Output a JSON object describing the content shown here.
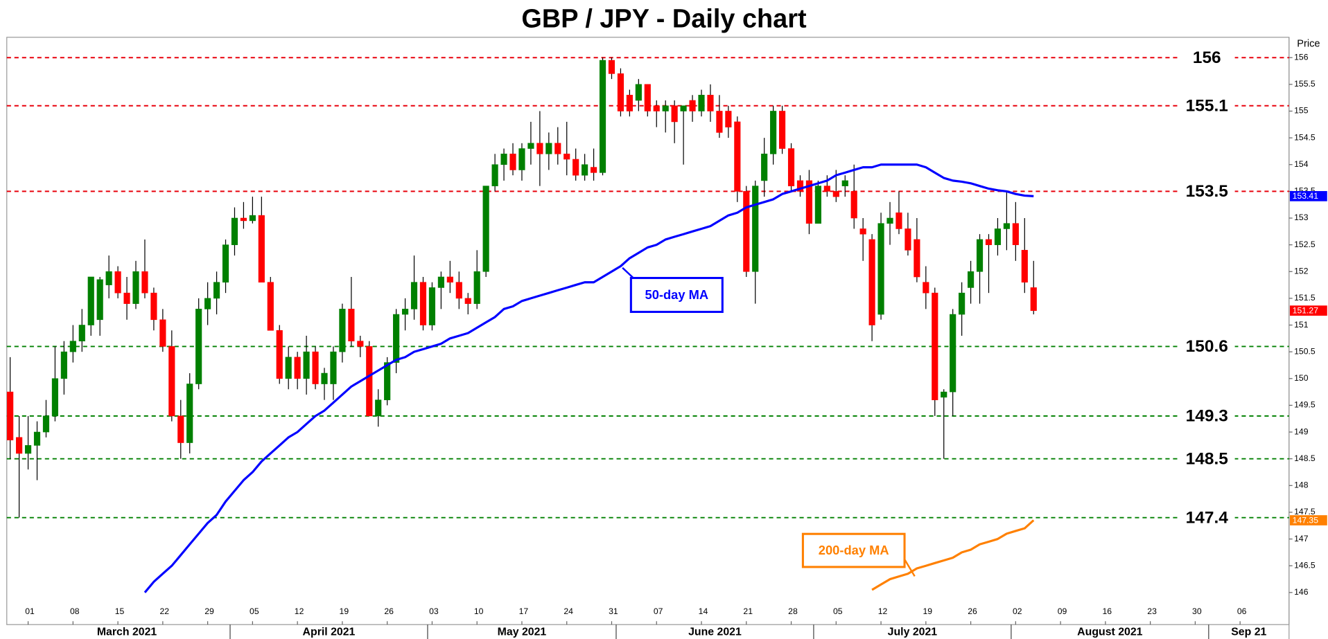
{
  "chart_data": {
    "type": "candlestick",
    "title": "GBP / JPY - Daily chart",
    "y_axis_label": "Price",
    "categories": [
      "2021-02-25",
      "2021-02-26",
      "2021-03-01",
      "2021-03-02",
      "2021-03-03",
      "2021-03-04",
      "2021-03-05",
      "2021-03-08",
      "2021-03-09",
      "2021-03-10",
      "2021-03-11",
      "2021-03-12",
      "2021-03-15",
      "2021-03-16",
      "2021-03-17",
      "2021-03-18",
      "2021-03-19",
      "2021-03-22",
      "2021-03-23",
      "2021-03-24",
      "2021-03-25",
      "2021-03-26",
      "2021-03-29",
      "2021-03-30",
      "2021-03-31",
      "2021-04-01",
      "2021-04-02",
      "2021-04-05",
      "2021-04-06",
      "2021-04-07",
      "2021-04-08",
      "2021-04-09",
      "2021-04-12",
      "2021-04-13",
      "2021-04-14",
      "2021-04-15",
      "2021-04-16",
      "2021-04-19",
      "2021-04-20",
      "2021-04-21",
      "2021-04-22",
      "2021-04-23",
      "2021-04-26",
      "2021-04-27",
      "2021-04-28",
      "2021-04-29",
      "2021-04-30",
      "2021-05-03",
      "2021-05-04",
      "2021-05-05",
      "2021-05-06",
      "2021-05-07",
      "2021-05-10",
      "2021-05-11",
      "2021-05-12",
      "2021-05-13",
      "2021-05-14",
      "2021-05-17",
      "2021-05-18",
      "2021-05-19",
      "2021-05-20",
      "2021-05-21",
      "2021-05-24",
      "2021-05-25",
      "2021-05-26",
      "2021-05-27",
      "2021-05-28",
      "2021-05-31",
      "2021-06-01",
      "2021-06-02",
      "2021-06-03",
      "2021-06-04",
      "2021-06-07",
      "2021-06-08",
      "2021-06-09",
      "2021-06-10",
      "2021-06-11",
      "2021-06-14",
      "2021-06-15",
      "2021-06-16",
      "2021-06-17",
      "2021-06-18",
      "2021-06-21",
      "2021-06-22",
      "2021-06-23",
      "2021-06-24",
      "2021-06-25",
      "2021-06-28",
      "2021-06-29",
      "2021-06-30",
      "2021-07-01",
      "2021-07-02",
      "2021-07-05",
      "2021-07-06",
      "2021-07-07",
      "2021-07-08",
      "2021-07-09",
      "2021-07-12",
      "2021-07-13",
      "2021-07-14",
      "2021-07-15",
      "2021-07-16",
      "2021-07-19",
      "2021-07-20",
      "2021-07-21",
      "2021-07-22",
      "2021-07-23",
      "2021-07-26",
      "2021-07-27",
      "2021-07-28",
      "2021-07-29",
      "2021-07-30",
      "2021-08-02",
      "2021-08-03",
      "2021-08-04"
    ],
    "open": [
      149.75,
      148.9,
      148.6,
      148.75,
      149.0,
      149.3,
      150.0,
      150.5,
      150.7,
      151.0,
      151.1,
      151.75,
      152.0,
      151.6,
      151.4,
      152.0,
      151.6,
      151.1,
      150.6,
      149.3,
      148.8,
      149.9,
      151.3,
      151.5,
      151.8,
      152.5,
      153.0,
      152.95,
      153.05,
      151.8,
      150.9,
      150.0,
      150.4,
      150.0,
      150.5,
      149.9,
      149.9,
      150.5,
      151.3,
      150.7,
      150.6,
      149.3,
      149.6,
      150.3,
      151.2,
      151.3,
      151.8,
      151.0,
      151.7,
      151.9,
      151.8,
      151.5,
      151.4,
      152.0,
      153.6,
      154.0,
      154.2,
      153.9,
      154.3,
      154.4,
      154.2,
      154.4,
      154.2,
      154.1,
      153.8,
      153.95,
      153.85,
      155.95,
      155.7,
      155.3,
      155.2,
      155.5,
      155.1,
      155.0,
      155.1,
      155.0,
      155.2,
      155.0,
      155.3,
      155.0,
      155.0,
      154.8,
      153.5,
      152.0,
      153.7,
      154.2,
      155.0,
      154.3,
      153.7,
      153.7,
      152.9,
      153.6,
      153.5,
      153.6,
      153.5,
      152.8,
      152.6,
      151.2,
      152.9,
      153.1,
      152.8,
      152.6,
      151.8,
      151.6,
      149.65,
      149.75,
      151.2,
      151.7,
      152.0,
      152.6,
      152.5,
      152.8,
      152.9,
      152.4,
      151.7
    ],
    "high": [
      150.4,
      149.3,
      149.3,
      149.2,
      149.6,
      150.6,
      150.7,
      151.0,
      151.3,
      151.9,
      151.9,
      152.3,
      152.1,
      151.9,
      152.2,
      152.6,
      151.7,
      151.3,
      150.9,
      149.6,
      150.1,
      151.5,
      151.8,
      152.0,
      152.6,
      153.2,
      153.3,
      153.4,
      153.4,
      151.9,
      151.0,
      150.6,
      150.5,
      150.8,
      150.6,
      150.2,
      150.6,
      151.4,
      151.9,
      150.8,
      150.7,
      149.8,
      150.4,
      151.3,
      151.5,
      152.3,
      151.9,
      151.8,
      152.0,
      152.2,
      152.0,
      151.6,
      152.4,
      153.6,
      154.2,
      154.3,
      154.4,
      154.4,
      154.8,
      155.0,
      154.6,
      154.7,
      154.8,
      154.3,
      154.2,
      154.3,
      156.0,
      156.0,
      155.8,
      155.4,
      155.6,
      155.5,
      155.2,
      155.2,
      155.2,
      155.1,
      155.3,
      155.4,
      155.5,
      155.3,
      155.1,
      154.9,
      153.6,
      153.7,
      154.5,
      155.1,
      155.1,
      154.4,
      153.8,
      153.9,
      153.7,
      153.8,
      153.9,
      153.8,
      154.0,
      153.0,
      152.7,
      153.1,
      153.3,
      153.5,
      153.1,
      153.0,
      152.1,
      151.7,
      149.8,
      151.3,
      151.8,
      152.2,
      152.7,
      152.7,
      153.0,
      153.5,
      153.3,
      153.0,
      152.2
    ],
    "low": [
      148.5,
      147.4,
      148.3,
      148.1,
      148.9,
      149.2,
      149.7,
      150.3,
      150.5,
      150.8,
      150.8,
      151.5,
      151.5,
      151.1,
      151.3,
      151.5,
      150.9,
      150.5,
      149.2,
      148.5,
      148.6,
      149.8,
      151.0,
      151.2,
      151.6,
      152.3,
      152.8,
      152.9,
      151.8,
      150.9,
      149.9,
      149.8,
      149.8,
      149.7,
      149.8,
      149.6,
      149.6,
      150.3,
      150.6,
      150.4,
      149.3,
      149.1,
      149.5,
      150.1,
      150.9,
      151.1,
      150.9,
      150.9,
      151.3,
      151.6,
      151.3,
      151.2,
      151.3,
      151.9,
      153.5,
      153.7,
      153.8,
      153.7,
      154.0,
      153.6,
      153.9,
      154.0,
      153.8,
      153.7,
      153.7,
      153.7,
      153.8,
      155.6,
      154.9,
      154.9,
      155.0,
      154.9,
      154.7,
      154.6,
      154.4,
      154.0,
      154.8,
      154.9,
      154.8,
      154.5,
      154.5,
      153.3,
      151.9,
      151.4,
      153.4,
      154.0,
      154.2,
      153.5,
      153.4,
      152.7,
      152.9,
      153.4,
      153.3,
      153.4,
      152.8,
      152.2,
      150.7,
      151.1,
      152.5,
      152.7,
      152.3,
      151.8,
      151.3,
      149.3,
      148.5,
      149.3,
      150.8,
      151.4,
      151.4,
      151.6,
      152.3,
      152.4,
      152.2,
      151.6,
      151.2
    ],
    "close": [
      148.85,
      148.6,
      148.75,
      149.0,
      149.3,
      150.0,
      150.5,
      150.7,
      151.0,
      151.9,
      151.85,
      152.0,
      151.6,
      151.4,
      152.0,
      151.6,
      151.1,
      150.6,
      149.3,
      148.8,
      149.9,
      151.3,
      151.5,
      151.8,
      152.5,
      153.0,
      152.95,
      153.05,
      151.8,
      150.9,
      150.0,
      150.4,
      150.0,
      150.5,
      149.9,
      150.1,
      150.5,
      151.3,
      150.7,
      150.6,
      149.3,
      149.6,
      150.3,
      151.2,
      151.3,
      151.8,
      151.0,
      151.7,
      151.9,
      151.8,
      151.5,
      151.4,
      152.0,
      153.6,
      154.0,
      154.2,
      153.9,
      154.3,
      154.4,
      154.2,
      154.4,
      154.2,
      154.1,
      153.8,
      154.0,
      153.85,
      155.95,
      155.7,
      155.0,
      155.0,
      155.5,
      155.0,
      155.0,
      155.1,
      154.8,
      155.1,
      155.0,
      155.3,
      155.0,
      154.6,
      154.7,
      153.5,
      152.0,
      153.6,
      154.2,
      155.0,
      154.3,
      153.6,
      153.5,
      152.9,
      153.6,
      153.5,
      153.4,
      153.7,
      153.0,
      152.7,
      151.0,
      152.9,
      153.0,
      152.8,
      152.4,
      151.9,
      151.6,
      149.6,
      149.75,
      151.2,
      151.6,
      152.0,
      152.6,
      152.5,
      152.8,
      152.9,
      152.5,
      151.8,
      151.27
    ],
    "up_color": "#008000",
    "down_color": "#ff0000",
    "series": [
      {
        "name": "50-day MA",
        "color": "#0000ff",
        "values": [
          null,
          null,
          null,
          null,
          null,
          null,
          null,
          null,
          null,
          null,
          null,
          null,
          null,
          null,
          null,
          146.0,
          146.2,
          146.35,
          146.5,
          146.7,
          146.9,
          147.1,
          147.3,
          147.45,
          147.7,
          147.9,
          148.1,
          148.25,
          148.45,
          148.6,
          148.75,
          148.9,
          149.0,
          149.15,
          149.3,
          149.4,
          149.55,
          149.7,
          149.85,
          149.95,
          150.05,
          150.15,
          150.25,
          150.35,
          150.4,
          150.5,
          150.55,
          150.6,
          150.65,
          150.75,
          150.8,
          150.85,
          150.95,
          151.05,
          151.15,
          151.3,
          151.35,
          151.45,
          151.5,
          151.55,
          151.6,
          151.65,
          151.7,
          151.75,
          151.8,
          151.8,
          151.9,
          152.0,
          152.1,
          152.25,
          152.35,
          152.45,
          152.5,
          152.6,
          152.65,
          152.7,
          152.75,
          152.8,
          152.85,
          152.95,
          153.05,
          153.1,
          153.2,
          153.25,
          153.3,
          153.35,
          153.45,
          153.5,
          153.55,
          153.6,
          153.65,
          153.7,
          153.8,
          153.85,
          153.9,
          153.95,
          153.95,
          154.0,
          154.0,
          154.0,
          154.0,
          154.0,
          153.95,
          153.85,
          153.75,
          153.7,
          153.68,
          153.65,
          153.6,
          153.55,
          153.52,
          153.5,
          153.45,
          153.42,
          153.41
        ]
      },
      {
        "name": "200-day MA",
        "color": "#ff8000",
        "values": [
          null,
          null,
          null,
          null,
          null,
          null,
          null,
          null,
          null,
          null,
          null,
          null,
          null,
          null,
          null,
          null,
          null,
          null,
          null,
          null,
          null,
          null,
          null,
          null,
          null,
          null,
          null,
          null,
          null,
          null,
          null,
          null,
          null,
          null,
          null,
          null,
          null,
          null,
          null,
          null,
          null,
          null,
          null,
          null,
          null,
          null,
          null,
          null,
          null,
          null,
          null,
          null,
          null,
          null,
          null,
          null,
          null,
          null,
          null,
          null,
          null,
          null,
          null,
          null,
          null,
          null,
          null,
          null,
          null,
          null,
          null,
          null,
          null,
          null,
          null,
          null,
          null,
          null,
          null,
          null,
          null,
          null,
          null,
          null,
          null,
          null,
          null,
          null,
          null,
          null,
          null,
          null,
          null,
          null,
          null,
          null,
          146.05,
          146.15,
          146.25,
          146.3,
          146.35,
          146.45,
          146.5,
          146.55,
          146.6,
          146.65,
          146.75,
          146.8,
          146.9,
          146.95,
          147.0,
          147.1,
          147.15,
          147.2,
          147.35
        ]
      }
    ],
    "levels": [
      {
        "value": 156,
        "color": "#e8000b"
      },
      {
        "value": 155.1,
        "color": "#e8000b"
      },
      {
        "value": 153.5,
        "color": "#e8000b"
      },
      {
        "value": 150.6,
        "color": "#008000"
      },
      {
        "value": 149.3,
        "color": "#008000"
      },
      {
        "value": 148.5,
        "color": "#008000"
      },
      {
        "value": 147.4,
        "color": "#008000"
      }
    ],
    "ylim": [
      145.4,
      156.38
    ],
    "yticks": [
      146,
      146.5,
      147,
      147.5,
      148,
      148.5,
      149,
      149.5,
      150,
      150.5,
      151,
      151.5,
      152,
      152.5,
      153,
      153.5,
      154,
      154.5,
      155,
      155.5,
      156
    ],
    "grid": false,
    "xticks": [
      {
        "value": "2021-03-01",
        "label": "01"
      },
      {
        "value": "2021-03-08",
        "label": "08"
      },
      {
        "value": "2021-03-15",
        "label": "15"
      },
      {
        "value": "2021-03-22",
        "label": "22"
      },
      {
        "value": "2021-03-29",
        "label": "29"
      },
      {
        "value": "2021-04-05",
        "label": "05"
      },
      {
        "value": "2021-04-12",
        "label": "12"
      },
      {
        "value": "2021-04-19",
        "label": "19"
      },
      {
        "value": "2021-04-26",
        "label": "26"
      },
      {
        "value": "2021-05-03",
        "label": "03"
      },
      {
        "value": "2021-05-10",
        "label": "10"
      },
      {
        "value": "2021-05-17",
        "label": "17"
      },
      {
        "value": "2021-05-24",
        "label": "24"
      },
      {
        "value": "2021-05-31",
        "label": "31"
      },
      {
        "value": "2021-06-07",
        "label": "07"
      },
      {
        "value": "2021-06-14",
        "label": "14"
      },
      {
        "value": "2021-06-21",
        "label": "21"
      },
      {
        "value": "2021-06-28",
        "label": "28"
      },
      {
        "value": "2021-07-05",
        "label": "05"
      },
      {
        "value": "2021-07-12",
        "label": "12"
      },
      {
        "value": "2021-07-19",
        "label": "19"
      },
      {
        "value": "2021-07-26",
        "label": "26"
      },
      {
        "value": "2021-08-02",
        "label": "02"
      },
      {
        "value": "2021-08-09",
        "label": "09"
      },
      {
        "value": "2021-08-16",
        "label": "16"
      },
      {
        "value": "2021-08-23",
        "label": "23"
      },
      {
        "value": "2021-08-30",
        "label": "30"
      },
      {
        "value": "2021-09-06",
        "label": "06"
      }
    ],
    "month_labels": [
      {
        "value": "2021-03",
        "label": "March 2021"
      },
      {
        "value": "2021-04",
        "label": "April 2021"
      },
      {
        "value": "2021-05",
        "label": "May 2021"
      },
      {
        "value": "2021-06",
        "label": "June 2021"
      },
      {
        "value": "2021-07",
        "label": "July 2021"
      },
      {
        "value": "2021-08",
        "label": "August 2021"
      },
      {
        "value": "2021-09",
        "label": "Sep 21"
      }
    ]
  }
}
